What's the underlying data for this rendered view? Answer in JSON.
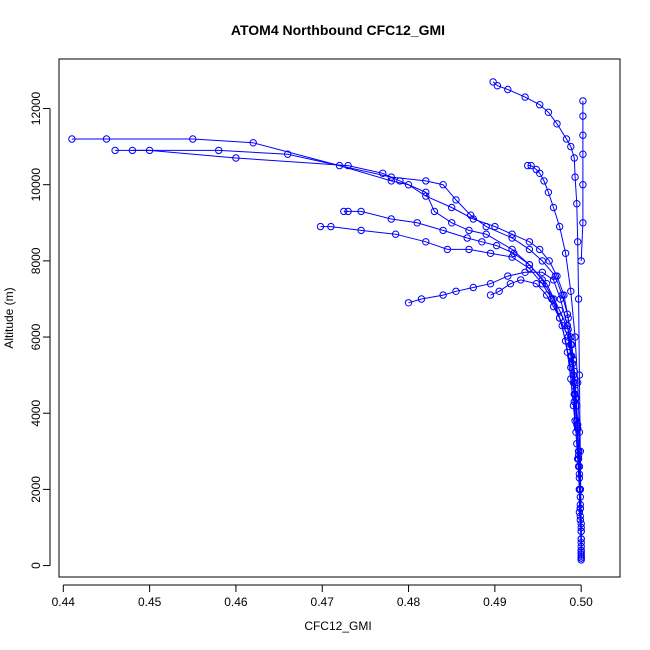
{
  "chart_data": {
    "type": "scatter",
    "title": "ATOM4 Northbound CFC12_GMI",
    "xlabel": "CFC12_GMI",
    "ylabel": "Altitude (m)",
    "xlim": [
      0.4395,
      0.5045
    ],
    "ylim": [
      -300,
      13300
    ],
    "x_ticks": [
      0.44,
      0.45,
      0.46,
      0.47,
      0.48,
      0.49,
      0.5
    ],
    "x_tick_labels": [
      "0.44",
      "0.45",
      "0.46",
      "0.47",
      "0.48",
      "0.49",
      "0.50"
    ],
    "y_ticks": [
      0,
      2000,
      4000,
      6000,
      8000,
      10000,
      12000
    ],
    "y_tick_labels": [
      "0",
      "2000",
      "4000",
      "6000",
      "8000",
      "10000",
      "12000"
    ],
    "grid": false,
    "color": "#0000ff",
    "series": [
      {
        "points": [
          [
            0.5,
            150
          ],
          [
            0.5,
            500
          ],
          [
            0.5,
            900
          ],
          [
            0.4998,
            1400
          ],
          [
            0.4998,
            2000
          ],
          [
            0.4997,
            2600
          ],
          [
            0.4995,
            3200
          ],
          [
            0.4993,
            3800
          ],
          [
            0.4992,
            4300
          ],
          [
            0.4991,
            4800
          ],
          [
            0.499,
            5300
          ],
          [
            0.4988,
            5800
          ],
          [
            0.4985,
            6200
          ],
          [
            0.4975,
            6700
          ],
          [
            0.496,
            7400
          ],
          [
            0.494,
            7900
          ],
          [
            0.492,
            8300
          ],
          [
            0.489,
            8700
          ],
          [
            0.487,
            8800
          ],
          [
            0.485,
            9000
          ],
          [
            0.483,
            9300
          ],
          [
            0.482,
            9800
          ],
          [
            0.479,
            10100
          ],
          [
            0.477,
            10300
          ],
          [
            0.473,
            10500
          ],
          [
            0.46,
            10700
          ],
          [
            0.45,
            10900
          ],
          [
            0.446,
            10900
          ]
        ]
      },
      {
        "points": [
          [
            0.5,
            250
          ],
          [
            0.5,
            700
          ],
          [
            0.4999,
            1200
          ],
          [
            0.4999,
            1800
          ],
          [
            0.4998,
            2400
          ],
          [
            0.4997,
            3000
          ],
          [
            0.4996,
            3600
          ],
          [
            0.4995,
            4200
          ],
          [
            0.4993,
            4800
          ],
          [
            0.4991,
            5400
          ],
          [
            0.4988,
            6000
          ],
          [
            0.4984,
            6600
          ],
          [
            0.4978,
            7100
          ],
          [
            0.497,
            7600
          ],
          [
            0.4955,
            8000
          ],
          [
            0.494,
            8300
          ],
          [
            0.492,
            8600
          ],
          [
            0.489,
            8900
          ],
          [
            0.4872,
            9200
          ],
          [
            0.4855,
            9600
          ],
          [
            0.484,
            10000
          ],
          [
            0.482,
            10100
          ],
          [
            0.478,
            10200
          ],
          [
            0.466,
            10800
          ],
          [
            0.458,
            10900
          ],
          [
            0.448,
            10900
          ]
        ]
      },
      {
        "points": [
          [
            0.5,
            350
          ],
          [
            0.5,
            900
          ],
          [
            0.4999,
            1600
          ],
          [
            0.4998,
            2300
          ],
          [
            0.4997,
            3000
          ],
          [
            0.4996,
            3700
          ],
          [
            0.4994,
            4400
          ],
          [
            0.4992,
            5100
          ],
          [
            0.4989,
            5800
          ],
          [
            0.4985,
            6500
          ],
          [
            0.498,
            7100
          ],
          [
            0.4972,
            7600
          ],
          [
            0.4963,
            8000
          ],
          [
            0.4952,
            8300
          ],
          [
            0.494,
            8500
          ],
          [
            0.492,
            8700
          ],
          [
            0.49,
            8900
          ],
          [
            0.4875,
            9100
          ],
          [
            0.485,
            9400
          ],
          [
            0.482,
            9700
          ],
          [
            0.48,
            10000
          ],
          [
            0.478,
            10100
          ],
          [
            0.472,
            10500
          ],
          [
            0.462,
            11100
          ],
          [
            0.455,
            11200
          ],
          [
            0.445,
            11200
          ],
          [
            0.441,
            11200
          ]
        ]
      },
      {
        "points": [
          [
            0.5,
            200
          ],
          [
            0.5,
            700
          ],
          [
            0.4999,
            1300
          ],
          [
            0.4998,
            2000
          ],
          [
            0.4996,
            2800
          ],
          [
            0.4994,
            3500
          ],
          [
            0.4991,
            4200
          ],
          [
            0.4988,
            4900
          ],
          [
            0.4984,
            5600
          ],
          [
            0.4978,
            6300
          ],
          [
            0.4968,
            7000
          ],
          [
            0.4955,
            7500
          ],
          [
            0.494,
            7900
          ],
          [
            0.4922,
            8200
          ],
          [
            0.4902,
            8400
          ],
          [
            0.4885,
            8500
          ],
          [
            0.4868,
            8600
          ],
          [
            0.484,
            8800
          ],
          [
            0.481,
            9000
          ],
          [
            0.478,
            9100
          ],
          [
            0.4745,
            9300
          ],
          [
            0.473,
            9300
          ],
          [
            0.4725,
            9300
          ]
        ]
      },
      {
        "points": [
          [
            0.5,
            300
          ],
          [
            0.5,
            1100
          ],
          [
            0.4999,
            2000
          ],
          [
            0.4997,
            2900
          ],
          [
            0.4995,
            3700
          ],
          [
            0.4992,
            4500
          ],
          [
            0.4988,
            5200
          ],
          [
            0.4982,
            5900
          ],
          [
            0.4975,
            6500
          ],
          [
            0.4966,
            7000
          ],
          [
            0.4955,
            7400
          ],
          [
            0.494,
            7800
          ],
          [
            0.492,
            8100
          ],
          [
            0.4895,
            8200
          ],
          [
            0.487,
            8300
          ],
          [
            0.4845,
            8300
          ],
          [
            0.482,
            8500
          ],
          [
            0.4785,
            8700
          ],
          [
            0.4745,
            8800
          ],
          [
            0.471,
            8900
          ],
          [
            0.4698,
            8900
          ]
        ]
      },
      {
        "points": [
          [
            0.5,
            400
          ],
          [
            0.4999,
            1500
          ],
          [
            0.4998,
            2600
          ],
          [
            0.4996,
            3600
          ],
          [
            0.4993,
            4600
          ],
          [
            0.4989,
            5500
          ],
          [
            0.4984,
            6300
          ],
          [
            0.4976,
            7000
          ],
          [
            0.4968,
            7500
          ],
          [
            0.4955,
            7700
          ],
          [
            0.4935,
            7700
          ],
          [
            0.4915,
            7600
          ],
          [
            0.4895,
            7400
          ],
          [
            0.4875,
            7300
          ],
          [
            0.4855,
            7200
          ],
          [
            0.484,
            7100
          ],
          [
            0.4815,
            7000
          ],
          [
            0.48,
            6900
          ]
        ]
      },
      {
        "points": [
          [
            0.5,
            200
          ],
          [
            0.4999,
            1500
          ],
          [
            0.4997,
            2800
          ],
          [
            0.4995,
            3800
          ],
          [
            0.4993,
            4500
          ],
          [
            0.4991,
            5000
          ],
          [
            0.4988,
            5500
          ],
          [
            0.4985,
            6000
          ],
          [
            0.4975,
            6500
          ],
          [
            0.4968,
            6800
          ],
          [
            0.496,
            7100
          ],
          [
            0.4948,
            7400
          ],
          [
            0.493,
            7500
          ],
          [
            0.4918,
            7400
          ],
          [
            0.4905,
            7200
          ],
          [
            0.4895,
            7100
          ]
        ]
      },
      {
        "points": [
          [
            0.5,
            600
          ],
          [
            0.4999,
            2000
          ],
          [
            0.4998,
            3500
          ],
          [
            0.4996,
            4800
          ],
          [
            0.4993,
            6000
          ],
          [
            0.4988,
            7200
          ],
          [
            0.4982,
            8200
          ],
          [
            0.4975,
            8900
          ],
          [
            0.4968,
            9400
          ],
          [
            0.4962,
            9800
          ],
          [
            0.4957,
            10100
          ],
          [
            0.4952,
            10300
          ],
          [
            0.4948,
            10400
          ],
          [
            0.4942,
            10500
          ],
          [
            0.4938,
            10500
          ]
        ]
      },
      {
        "points": [
          [
            0.5,
            1000
          ],
          [
            0.4999,
            3000
          ],
          [
            0.4998,
            5000
          ],
          [
            0.4997,
            7000
          ],
          [
            0.4996,
            8500
          ],
          [
            0.4995,
            9500
          ],
          [
            0.4993,
            10200
          ],
          [
            0.4992,
            10700
          ],
          [
            0.4988,
            11000
          ],
          [
            0.4983,
            11200
          ],
          [
            0.4972,
            11600
          ],
          [
            0.4962,
            11900
          ],
          [
            0.4952,
            12100
          ],
          [
            0.4935,
            12300
          ],
          [
            0.4915,
            12500
          ],
          [
            0.4903,
            12600
          ],
          [
            0.4898,
            12700
          ]
        ]
      },
      {
        "points": [
          [
            0.5,
            8000
          ],
          [
            0.5002,
            9000
          ],
          [
            0.5002,
            10000
          ],
          [
            0.5002,
            10800
          ],
          [
            0.5002,
            11300
          ],
          [
            0.5002,
            11800
          ],
          [
            0.5002,
            12200
          ]
        ]
      }
    ]
  }
}
